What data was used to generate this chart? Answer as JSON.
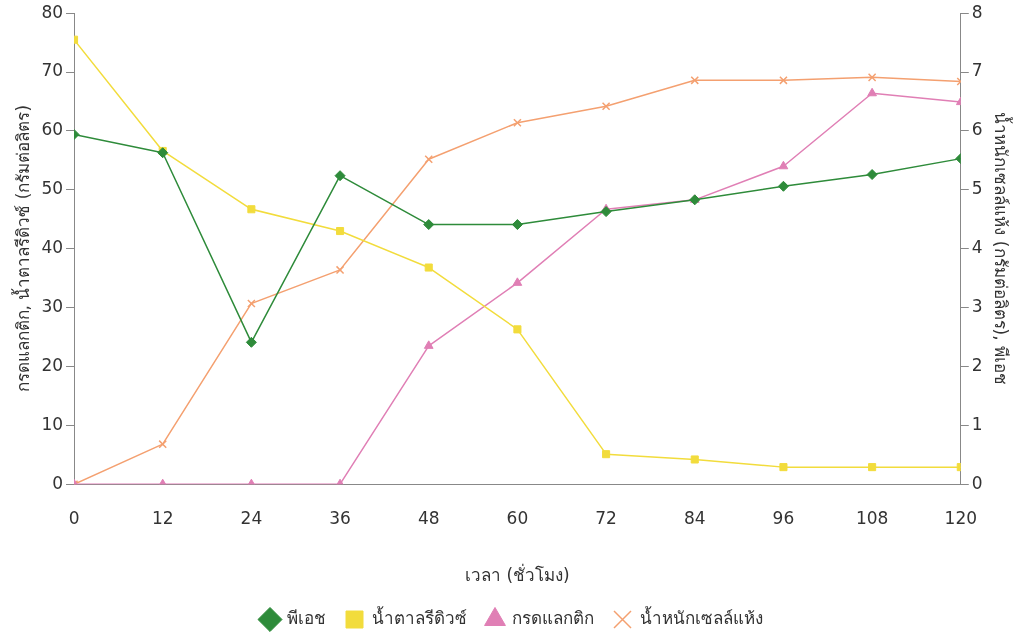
{
  "chart_data": {
    "type": "line",
    "xlabel": "เวลา (ชั่วโมง)",
    "ylabel": "กรดแลกติก, น้ำตาลรีดิวซ์ (กรัมต่อลิตร)",
    "y2label": "น้ำหนักเซลล์แห้ง (กรัมต่อลิตร), พีเอช",
    "x": [
      0,
      12,
      24,
      36,
      48,
      60,
      72,
      84,
      96,
      108,
      120
    ],
    "xlim": [
      0,
      120
    ],
    "xticks": [
      0,
      12,
      24,
      36,
      48,
      60,
      72,
      84,
      96,
      108,
      120
    ],
    "ylim": [
      0,
      80
    ],
    "yticks": [
      0,
      10,
      20,
      30,
      40,
      50,
      60,
      70,
      80
    ],
    "y2lim": [
      0,
      8
    ],
    "y2ticks": [
      0,
      1,
      2,
      3,
      4,
      5,
      6,
      7,
      8
    ],
    "grid": false,
    "legend": "bottom",
    "series": [
      {
        "name": "น้ำตาลรีดิวซ์",
        "color": "#f2dc3c",
        "marker": "square",
        "values": [
          75.5,
          56.6,
          46.7,
          43,
          36.8,
          26.3,
          5.1,
          4.2,
          2.9,
          2.9,
          2.9
        ]
      },
      {
        "name": "กรดแลกติก",
        "color": "#e07fb5",
        "marker": "triangle",
        "values": [
          0,
          0,
          0,
          0,
          23.5,
          34.2,
          46.7,
          48.3,
          54,
          66.4,
          64.9
        ]
      },
      {
        "name": "พีเอช",
        "color": "#2e8b3a",
        "marker": "diamond",
        "axis": "y2",
        "values": [
          5.94,
          5.63,
          2.41,
          5.24,
          4.41,
          4.41,
          4.63,
          4.83,
          5.06,
          5.26,
          5.53
        ]
      },
      {
        "name": "น้ำหนักเซลล์แห้ง",
        "color": "#f4a070",
        "marker": "cross",
        "axis": "y2",
        "values": [
          0,
          0.68,
          3.07,
          3.64,
          5.52,
          6.14,
          6.42,
          6.86,
          6.86,
          6.91,
          6.84
        ]
      }
    ]
  }
}
